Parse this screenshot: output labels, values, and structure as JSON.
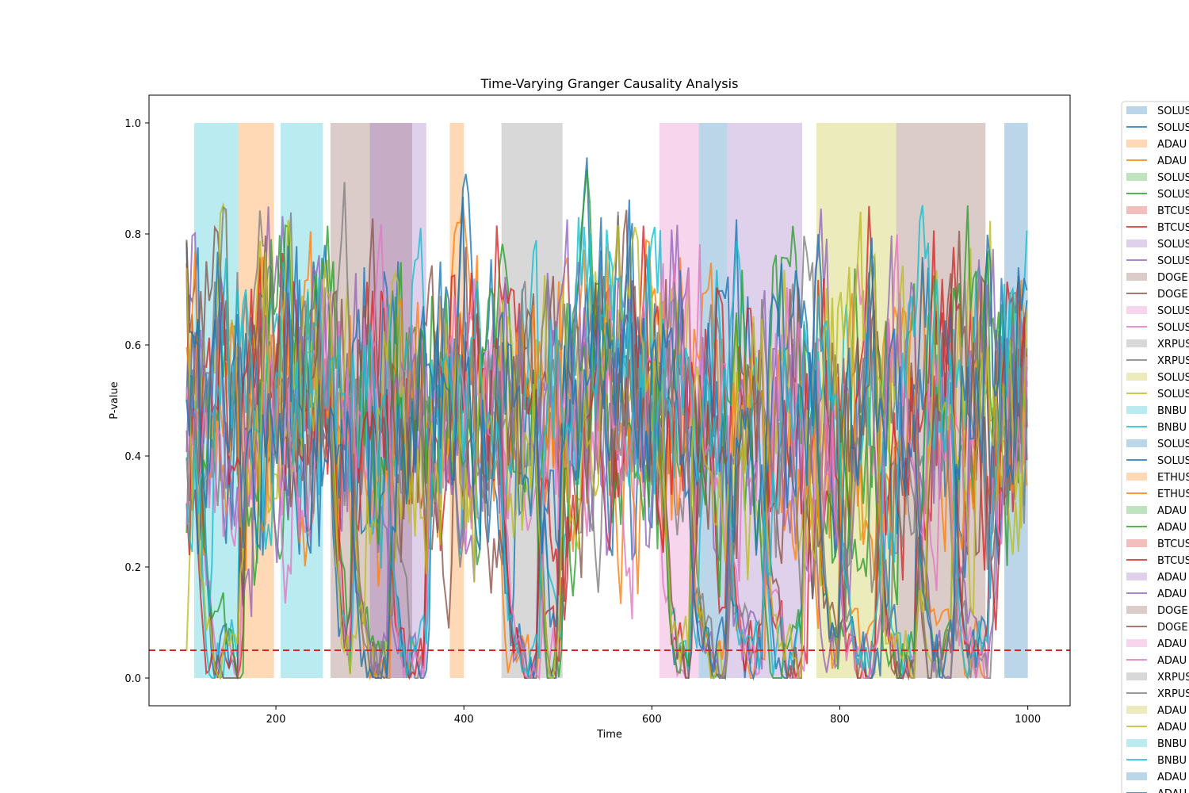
{
  "chart_data": {
    "type": "line",
    "title": "Time-Varying Granger Causality Analysis",
    "xlabel": "Time",
    "ylabel": "P-value",
    "xlim": [
      65,
      1045
    ],
    "ylim": [
      -0.05,
      1.05
    ],
    "xticks": [
      200,
      400,
      600,
      800,
      1000
    ],
    "yticks": [
      0.0,
      0.2,
      0.4,
      0.6,
      0.8,
      1.0
    ],
    "x_range": [
      105,
      1000
    ],
    "threshold": {
      "value": 0.05,
      "color": "#d62728",
      "style": "dashed"
    },
    "grid": false,
    "legend_position": "outside-right (clipped)",
    "legend": [
      {
        "kind": "patch",
        "label": "SOLUS",
        "color": "#1f77b4"
      },
      {
        "kind": "line",
        "label": "SOLUS",
        "color": "#1f77b4"
      },
      {
        "kind": "patch",
        "label": "ADAU",
        "color": "#ff7f0e"
      },
      {
        "kind": "line",
        "label": "ADAU",
        "color": "#ff7f0e"
      },
      {
        "kind": "patch",
        "label": "SOLUS",
        "color": "#2ca02c"
      },
      {
        "kind": "line",
        "label": "SOLUS",
        "color": "#2ca02c"
      },
      {
        "kind": "patch",
        "label": "BTCUS",
        "color": "#d62728"
      },
      {
        "kind": "line",
        "label": "BTCUS",
        "color": "#d62728"
      },
      {
        "kind": "patch",
        "label": "SOLUS",
        "color": "#9467bd"
      },
      {
        "kind": "line",
        "label": "SOLUS",
        "color": "#9467bd"
      },
      {
        "kind": "patch",
        "label": "DOGE",
        "color": "#8c564b"
      },
      {
        "kind": "line",
        "label": "DOGE",
        "color": "#8c564b"
      },
      {
        "kind": "patch",
        "label": "SOLUS",
        "color": "#e377c2"
      },
      {
        "kind": "line",
        "label": "SOLUS",
        "color": "#e377c2"
      },
      {
        "kind": "patch",
        "label": "XRPUS",
        "color": "#7f7f7f"
      },
      {
        "kind": "line",
        "label": "XRPUS",
        "color": "#7f7f7f"
      },
      {
        "kind": "patch",
        "label": "SOLUS",
        "color": "#bcbd22"
      },
      {
        "kind": "line",
        "label": "SOLUS",
        "color": "#bcbd22"
      },
      {
        "kind": "patch",
        "label": "BNBU",
        "color": "#17becf"
      },
      {
        "kind": "line",
        "label": "BNBU",
        "color": "#17becf"
      },
      {
        "kind": "patch",
        "label": "SOLUS",
        "color": "#1f77b4"
      },
      {
        "kind": "line",
        "label": "SOLUS",
        "color": "#1f77b4"
      },
      {
        "kind": "patch",
        "label": "ETHUS",
        "color": "#ff7f0e"
      },
      {
        "kind": "line",
        "label": "ETHUS",
        "color": "#ff7f0e"
      },
      {
        "kind": "patch",
        "label": "ADAU",
        "color": "#2ca02c"
      },
      {
        "kind": "line",
        "label": "ADAU",
        "color": "#2ca02c"
      },
      {
        "kind": "patch",
        "label": "BTCUS",
        "color": "#d62728"
      },
      {
        "kind": "line",
        "label": "BTCUS",
        "color": "#d62728"
      },
      {
        "kind": "patch",
        "label": "ADAU",
        "color": "#9467bd"
      },
      {
        "kind": "line",
        "label": "ADAU",
        "color": "#9467bd"
      },
      {
        "kind": "patch",
        "label": "DOGE",
        "color": "#8c564b"
      },
      {
        "kind": "line",
        "label": "DOGE",
        "color": "#8c564b"
      },
      {
        "kind": "patch",
        "label": "ADAU",
        "color": "#e377c2"
      },
      {
        "kind": "line",
        "label": "ADAU",
        "color": "#e377c2"
      },
      {
        "kind": "patch",
        "label": "XRPUS",
        "color": "#7f7f7f"
      },
      {
        "kind": "line",
        "label": "XRPUS",
        "color": "#7f7f7f"
      },
      {
        "kind": "patch",
        "label": "ADAU",
        "color": "#bcbd22"
      },
      {
        "kind": "line",
        "label": "ADAU",
        "color": "#bcbd22"
      },
      {
        "kind": "patch",
        "label": "BNBU",
        "color": "#17becf"
      },
      {
        "kind": "line",
        "label": "BNBU",
        "color": "#17becf"
      },
      {
        "kind": "patch",
        "label": "ADAU",
        "color": "#1f77b4"
      },
      {
        "kind": "line",
        "label": "ADAU",
        "color": "#1f77b4"
      }
    ],
    "palette": [
      "#1f77b4",
      "#ff7f0e",
      "#2ca02c",
      "#d62728",
      "#9467bd",
      "#8c564b",
      "#e377c2",
      "#7f7f7f",
      "#bcbd22",
      "#17becf"
    ],
    "shaded_regions": [
      {
        "x": [
          113,
          160
        ],
        "color": "#17becf"
      },
      {
        "x": [
          160,
          198
        ],
        "color": "#ff7f0e"
      },
      {
        "x": [
          205,
          250
        ],
        "color": "#17becf"
      },
      {
        "x": [
          258,
          345
        ],
        "color": "#8c564b"
      },
      {
        "x": [
          300,
          360
        ],
        "color": "#9467bd"
      },
      {
        "x": [
          385,
          400
        ],
        "color": "#ff7f0e"
      },
      {
        "x": [
          440,
          505
        ],
        "color": "#7f7f7f"
      },
      {
        "x": [
          608,
          650
        ],
        "color": "#e377c2"
      },
      {
        "x": [
          650,
          680
        ],
        "color": "#1f77b4"
      },
      {
        "x": [
          680,
          760
        ],
        "color": "#9467bd"
      },
      {
        "x": [
          775,
          860
        ],
        "color": "#bcbd22"
      },
      {
        "x": [
          860,
          955
        ],
        "color": "#8c564b"
      },
      {
        "x": [
          975,
          1000
        ],
        "color": "#1f77b4"
      }
    ]
  }
}
